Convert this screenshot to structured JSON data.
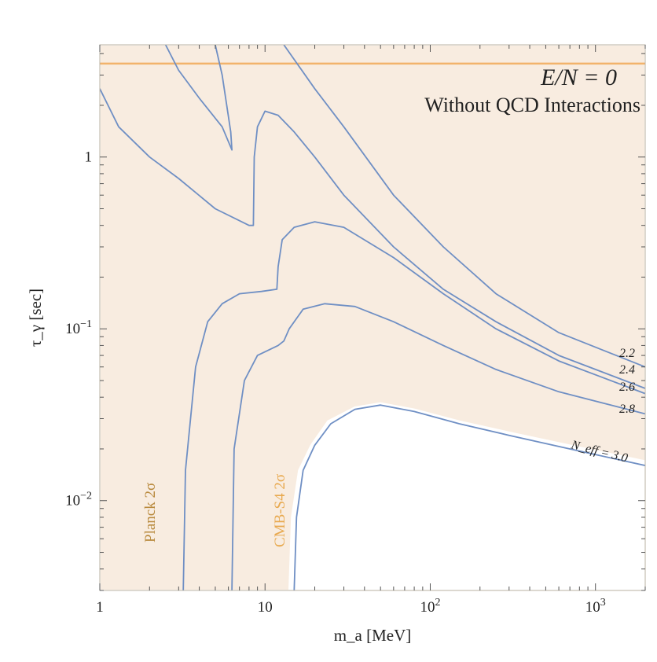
{
  "chart_data": {
    "type": "line",
    "title": "",
    "annotations": [
      "E/N = 0",
      "Without QCD Interactions"
    ],
    "xlabel": "m_a [MeV]",
    "ylabel": "τ_γ [sec]",
    "x_scale": "log",
    "y_scale": "log",
    "xlim": [
      1,
      2000
    ],
    "ylim": [
      0.003,
      4.5
    ],
    "x_ticks": [
      {
        "value": 1,
        "label": "1"
      },
      {
        "value": 10,
        "label": "10"
      },
      {
        "value": 100,
        "label": "10^2"
      },
      {
        "value": 1000,
        "label": "10^3"
      }
    ],
    "y_ticks": [
      {
        "value": 0.01,
        "label": "10^-2"
      },
      {
        "value": 0.1,
        "label": "10^-1"
      },
      {
        "value": 1,
        "label": "1"
      }
    ],
    "horizontal_line": {
      "y": 3.5,
      "color": "#f2b36b"
    },
    "regions": [
      {
        "name": "Planck 2σ",
        "label": "Planck 2σ",
        "fill": "#efd1a1",
        "label_color": "#b98a3e",
        "boundary": [
          [
            3.5,
            0.003
          ],
          [
            3.6,
            0.015
          ],
          [
            4.0,
            0.05
          ],
          [
            4.6,
            0.1
          ],
          [
            5.5,
            0.13
          ],
          [
            7,
            0.155
          ],
          [
            9.5,
            0.16
          ],
          [
            11.5,
            0.15
          ],
          [
            12,
            0.2
          ],
          [
            12.5,
            0.27
          ],
          [
            15,
            0.32
          ],
          [
            20,
            0.34
          ],
          [
            30,
            0.33
          ],
          [
            50,
            0.25
          ],
          [
            100,
            0.16
          ],
          [
            200,
            0.108
          ],
          [
            400,
            0.073
          ],
          [
            1000,
            0.048
          ],
          [
            2000,
            0.036
          ]
        ]
      },
      {
        "name": "CMB-S4 2σ",
        "label": "CMB-S4 2σ",
        "fill": "#f8ece0",
        "label_color": "#e8a94f",
        "boundary": [
          [
            14,
            0.003
          ],
          [
            14.5,
            0.008
          ],
          [
            16,
            0.015
          ],
          [
            19,
            0.021
          ],
          [
            24,
            0.029
          ],
          [
            35,
            0.035
          ],
          [
            50,
            0.037
          ],
          [
            80,
            0.034
          ],
          [
            150,
            0.029
          ],
          [
            300,
            0.025
          ],
          [
            700,
            0.021
          ],
          [
            2000,
            0.017
          ]
        ]
      }
    ],
    "series": [
      {
        "name": "N_eff = 3.0",
        "label": "N_eff = 3.0",
        "color": "#6f8fc4",
        "points": [
          [
            15,
            0.003
          ],
          [
            15.5,
            0.008
          ],
          [
            17,
            0.015
          ],
          [
            20,
            0.021
          ],
          [
            25,
            0.028
          ],
          [
            35,
            0.034
          ],
          [
            50,
            0.036
          ],
          [
            80,
            0.033
          ],
          [
            150,
            0.028
          ],
          [
            300,
            0.024
          ],
          [
            700,
            0.02
          ],
          [
            2000,
            0.016
          ]
        ]
      },
      {
        "name": "2.8",
        "label": "2.8",
        "color": "#6f8fc4",
        "points": [
          [
            6.3,
            0.003
          ],
          [
            6.5,
            0.02
          ],
          [
            7.5,
            0.05
          ],
          [
            9,
            0.07
          ],
          [
            12,
            0.08
          ],
          [
            13,
            0.085
          ],
          [
            14,
            0.1
          ],
          [
            17,
            0.13
          ],
          [
            23,
            0.14
          ],
          [
            35,
            0.135
          ],
          [
            60,
            0.11
          ],
          [
            120,
            0.08
          ],
          [
            250,
            0.058
          ],
          [
            600,
            0.043
          ],
          [
            2000,
            0.032
          ]
        ]
      },
      {
        "name": "2.6",
        "label": "2.6",
        "color": "#6f8fc4",
        "points": [
          [
            3.2,
            0.003
          ],
          [
            3.3,
            0.015
          ],
          [
            3.8,
            0.06
          ],
          [
            4.5,
            0.11
          ],
          [
            5.5,
            0.14
          ],
          [
            7,
            0.16
          ],
          [
            9.5,
            0.165
          ],
          [
            11.8,
            0.17
          ],
          [
            12,
            0.23
          ],
          [
            12.7,
            0.33
          ],
          [
            15,
            0.39
          ],
          [
            20,
            0.42
          ],
          [
            30,
            0.39
          ],
          [
            60,
            0.26
          ],
          [
            120,
            0.16
          ],
          [
            250,
            0.1
          ],
          [
            600,
            0.065
          ],
          [
            2000,
            0.042
          ]
        ]
      },
      {
        "name": "2.4",
        "label": "2.4",
        "color": "#6f8fc4",
        "points": [
          [
            1,
            2.5
          ],
          [
            1.3,
            1.5
          ],
          [
            2,
            1.0
          ],
          [
            3,
            0.75
          ],
          [
            5,
            0.5
          ],
          [
            8,
            0.4
          ],
          [
            8.5,
            0.4
          ],
          [
            8.6,
            1.0
          ],
          [
            9,
            1.5
          ],
          [
            10,
            1.85
          ],
          [
            12,
            1.75
          ],
          [
            15,
            1.4
          ],
          [
            20,
            1.0
          ],
          [
            30,
            0.6
          ],
          [
            60,
            0.3
          ],
          [
            120,
            0.17
          ],
          [
            250,
            0.11
          ],
          [
            600,
            0.07
          ],
          [
            2000,
            0.045
          ]
        ]
      },
      {
        "name": "2.2",
        "label": "2.2",
        "color": "#6f8fc4",
        "points": [
          [
            2.5,
            4.5
          ],
          [
            3,
            3.2
          ],
          [
            4,
            2.2
          ],
          [
            5.5,
            1.5
          ],
          [
            6.3,
            1.1
          ],
          [
            6.2,
            1.4
          ],
          [
            5.5,
            3.0
          ],
          [
            5,
            4.5
          ]
        ]
      },
      {
        "name": "2.2-upper",
        "color": "#6f8fc4",
        "points": [
          [
            13,
            4.5
          ],
          [
            20,
            2.5
          ],
          [
            30,
            1.5
          ],
          [
            60,
            0.6
          ],
          [
            120,
            0.3
          ],
          [
            250,
            0.16
          ],
          [
            600,
            0.095
          ],
          [
            2000,
            0.06
          ]
        ]
      }
    ],
    "contour_labels": [
      "2.2",
      "2.4",
      "2.6",
      "2.8",
      "N_eff = 3.0"
    ],
    "grid": false,
    "legend": "none"
  }
}
